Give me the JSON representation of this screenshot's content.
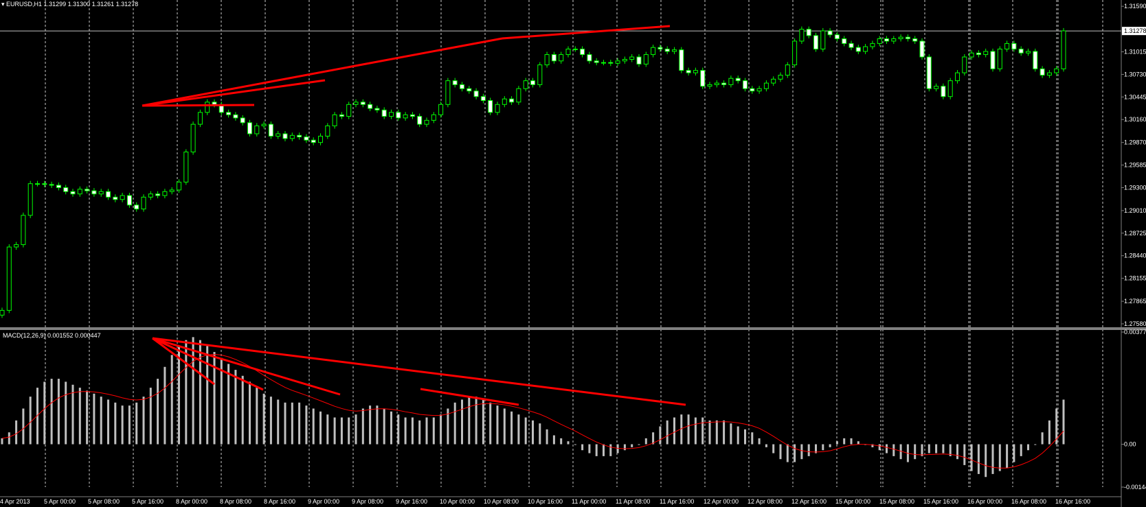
{
  "header": {
    "symbol_line": "EURUSD,H1  1.31299 1.31300 1.31261 1.31278",
    "macd_label": "MACD(12,26,9) 0.001552 0.000447"
  },
  "colors": {
    "background": "#000000",
    "candle_bull_fill": "#000000",
    "candle_bull_outline": "#00ff00",
    "candle_bear_fill": "#ffffff",
    "histogram": "#c0c0c0",
    "signal_line": "#ff0000",
    "trendlines": "#ff0000",
    "grid": "#ffffff",
    "divider": "#808080"
  },
  "price_axis": {
    "ticks": [
      "1.31590",
      "1.31015",
      "1.30730",
      "1.30445",
      "1.30160",
      "1.29870",
      "1.29585",
      "1.29300",
      "1.29010",
      "1.28725",
      "1.28440",
      "1.28155",
      "1.27865",
      "1.27580"
    ],
    "current_price": "1.31278"
  },
  "macd_axis": {
    "ticks": [
      "0.00377",
      "0.00",
      "-0.00144"
    ]
  },
  "time_axis": {
    "ticks": [
      "4 Apr 2013",
      "5 Apr 00:00",
      "5 Apr 08:00",
      "5 Apr 16:00",
      "8 Apr 00:00",
      "8 Apr 08:00",
      "8 Apr 16:00",
      "9 Apr 00:00",
      "9 Apr 08:00",
      "9 Apr 16:00",
      "10 Apr 00:00",
      "10 Apr 08:00",
      "10 Apr 16:00",
      "11 Apr 00:00",
      "11 Apr 08:00",
      "11 Apr 16:00",
      "12 Apr 00:00",
      "12 Apr 08:00",
      "12 Apr 16:00",
      "15 Apr 00:00",
      "15 Apr 08:00",
      "15 Apr 16:00",
      "16 Apr 00:00",
      "16 Apr 08:00",
      "16 Apr 16:00"
    ]
  },
  "chart_data": [
    {
      "type": "candlestick",
      "symbol": "EURUSD",
      "timeframe": "H1",
      "ylim": [
        1.2758,
        1.316
      ],
      "grid": "vertical dashed at time ticks",
      "bar_count": 151,
      "close": [
        1.2775,
        1.2855,
        1.2858,
        1.2895,
        1.2935,
        1.2935,
        1.2934,
        1.2933,
        1.293,
        1.2925,
        1.2922,
        1.2928,
        1.2926,
        1.2922,
        1.2925,
        1.2918,
        1.2915,
        1.292,
        1.2908,
        1.2903,
        1.2918,
        1.2922,
        1.292,
        1.2925,
        1.2927,
        1.2937,
        1.2975,
        1.301,
        1.3025,
        1.3038,
        1.3035,
        1.3025,
        1.3022,
        1.3018,
        1.3012,
        1.2998,
        1.3008,
        1.301,
        1.2995,
        1.2998,
        1.2992,
        1.2996,
        1.2994,
        1.299,
        1.2987,
        1.2995,
        1.3008,
        1.3022,
        1.302,
        1.3035,
        1.3038,
        1.3035,
        1.303,
        1.3028,
        1.302,
        1.3025,
        1.3018,
        1.3022,
        1.302,
        1.301,
        1.3015,
        1.3022,
        1.3035,
        1.3065,
        1.306,
        1.3055,
        1.3052,
        1.3045,
        1.304,
        1.3025,
        1.3035,
        1.3042,
        1.3038,
        1.3055,
        1.3065,
        1.306,
        1.3085,
        1.3098,
        1.309,
        1.3098,
        1.3105,
        1.3105,
        1.3098,
        1.309,
        1.3088,
        1.3088,
        1.3087,
        1.309,
        1.3092,
        1.3095,
        1.3086,
        1.3098,
        1.3107,
        1.3105,
        1.3102,
        1.3104,
        1.3078,
        1.3075,
        1.3078,
        1.3058,
        1.306,
        1.3062,
        1.306,
        1.3068,
        1.3065,
        1.3055,
        1.3052,
        1.3055,
        1.3062,
        1.3067,
        1.3072,
        1.3085,
        1.3115,
        1.313,
        1.3122,
        1.3105,
        1.3128,
        1.3123,
        1.3118,
        1.3112,
        1.3107,
        1.3102,
        1.3108,
        1.3112,
        1.3118,
        1.3115,
        1.3118,
        1.312,
        1.3118,
        1.3115,
        1.3095,
        1.3055,
        1.3058,
        1.3045,
        1.3065,
        1.3075,
        1.3095,
        1.31,
        1.3098,
        1.3102,
        1.308,
        1.3105,
        1.3112,
        1.3105,
        1.31,
        1.3102,
        1.308,
        1.3072,
        1.3075,
        1.308,
        1.3128
      ],
      "series": [
        {
          "name": "EURUSD,H1"
        }
      ]
    },
    {
      "type": "bar",
      "indicator": "MACD(12,26,9)",
      "ylim": [
        -0.00144,
        0.00377
      ],
      "macd_value": 0.001552,
      "signal_value": 0.000447,
      "macd_histogram": [
        0.0002,
        0.0004,
        0.0008,
        0.0012,
        0.0016,
        0.0019,
        0.0021,
        0.0022,
        0.0022,
        0.0021,
        0.002,
        0.0019,
        0.0018,
        0.0017,
        0.0016,
        0.0015,
        0.0014,
        0.0013,
        0.0013,
        0.0014,
        0.0016,
        0.0019,
        0.0022,
        0.0026,
        0.003,
        0.0033,
        0.0035,
        0.0036,
        0.0035,
        0.0033,
        0.0031,
        0.0029,
        0.0027,
        0.0025,
        0.0023,
        0.0021,
        0.0019,
        0.0017,
        0.0016,
        0.0015,
        0.0014,
        0.0014,
        0.0014,
        0.0013,
        0.0012,
        0.0011,
        0.001,
        0.0009,
        0.0009,
        0.0009,
        0.001,
        0.0012,
        0.0013,
        0.0013,
        0.0012,
        0.0011,
        0.001,
        0.0009,
        0.0009,
        0.0008,
        0.0009,
        0.0009,
        0.001,
        0.0012,
        0.0014,
        0.0015,
        0.0016,
        0.0016,
        0.0015,
        0.0014,
        0.0013,
        0.0012,
        0.0011,
        0.001,
        0.0009,
        0.0008,
        0.0007,
        0.0005,
        0.0003,
        0.0002,
        0.0001,
        0.0,
        -0.0002,
        -0.0003,
        -0.0004,
        -0.0004,
        -0.0004,
        -0.0003,
        -0.0002,
        -0.0001,
        0.0,
        0.0002,
        0.0004,
        0.0006,
        0.0008,
        0.0009,
        0.001,
        0.001,
        0.0009,
        0.0009,
        0.0008,
        0.0008,
        0.0008,
        0.0007,
        0.0006,
        0.0005,
        0.0004,
        0.0002,
        -0.0001,
        -0.0003,
        -0.0005,
        -0.0006,
        -0.0006,
        -0.0005,
        -0.0004,
        -0.0003,
        -0.0002,
        -0.0001,
        0.0001,
        0.0002,
        0.0002,
        0.0001,
        0.0,
        -0.0001,
        -0.0002,
        -0.0003,
        -0.0004,
        -0.0005,
        -0.0006,
        -0.0005,
        -0.0004,
        -0.0003,
        -0.0003,
        -0.0003,
        -0.0004,
        -0.0005,
        -0.0007,
        -0.0009,
        -0.001,
        -0.0011,
        -0.001,
        -0.0009,
        -0.0008,
        -0.0006,
        -0.0004,
        -0.0002,
        0.0,
        0.0004,
        0.0008,
        0.0012,
        0.0015
      ]
    }
  ]
}
